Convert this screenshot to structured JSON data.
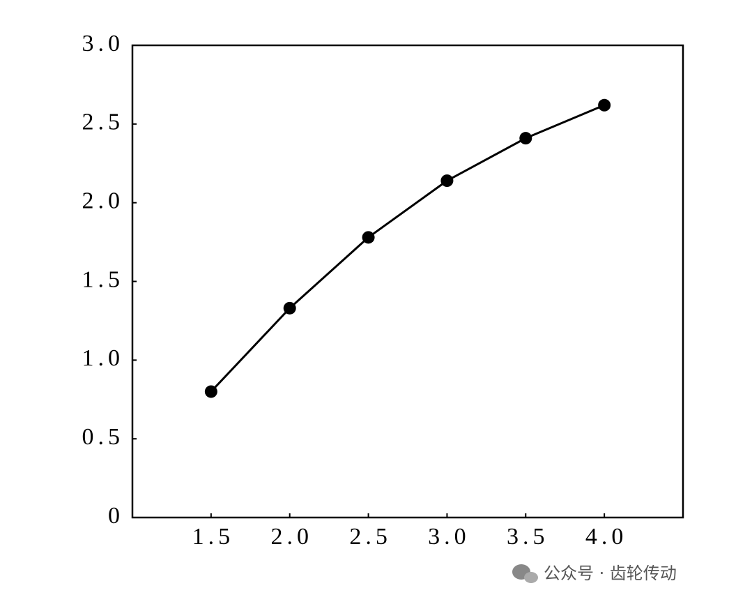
{
  "chart_data": {
    "type": "line",
    "x": [
      1.5,
      2.0,
      2.5,
      3.0,
      3.5,
      4.0
    ],
    "series": [
      {
        "color": "#000000",
        "values": [
          0.8,
          1.33,
          1.78,
          2.14,
          2.41,
          2.62
        ]
      }
    ],
    "xlim": [
      1.0,
      4.5
    ],
    "xticks": [
      1.5,
      {
        "value": 2,
        "label": "2.0"
      },
      2.5,
      {
        "value": 3,
        "label": "3.0"
      },
      3.5,
      {
        "value": 4,
        "label": "4.0"
      }
    ],
    "ylim": [
      0,
      3
    ],
    "yticks": [
      0,
      0.5,
      {
        "value": 1,
        "label": "1.0"
      },
      1.5,
      {
        "value": 2,
        "label": "2.0"
      },
      2.5,
      {
        "value": 3,
        "label": "3.0"
      }
    ],
    "grid": false,
    "watermark": "公众号 · 齿轮传动"
  }
}
